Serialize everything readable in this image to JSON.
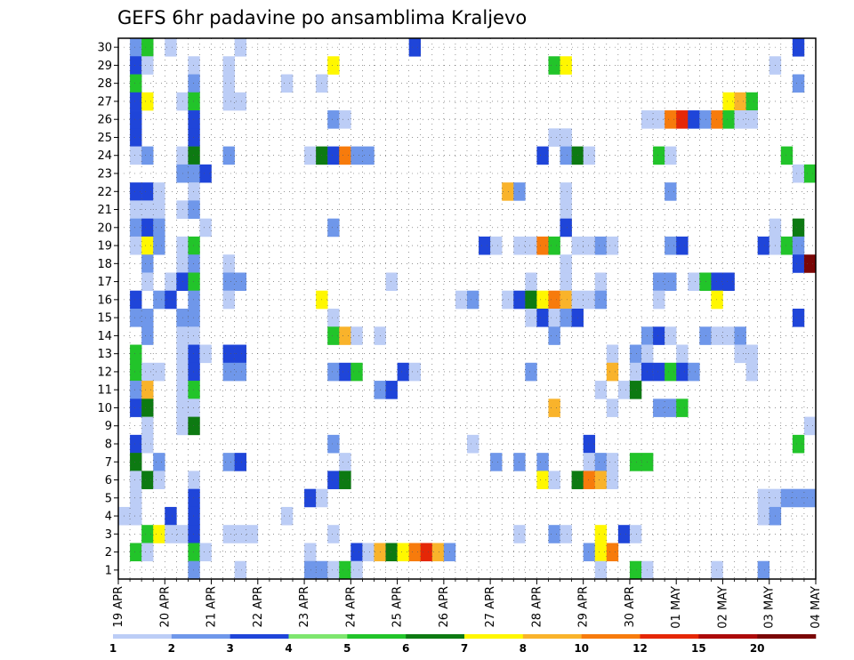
{
  "chart_data": {
    "type": "heatmap",
    "title": "GEFS 6hr padavine po ansamblima Kraljevo",
    "xlabel": "",
    "ylabel": "",
    "members": [
      30,
      29,
      28,
      27,
      26,
      25,
      24,
      23,
      22,
      21,
      20,
      19,
      18,
      17,
      16,
      15,
      14,
      13,
      12,
      11,
      10,
      9,
      8,
      7,
      6,
      5,
      4,
      3,
      2,
      1
    ],
    "x_ticks": [
      "19 APR",
      "20 APR",
      "21 APR",
      "22 APR",
      "23 APR",
      "24 APR",
      "25 APR",
      "26 APR",
      "27 APR",
      "28 APR",
      "29 APR",
      "30 APR",
      "01 MAY",
      "02 MAY",
      "03 MAY",
      "04 MAY"
    ],
    "steps_per_day": 4,
    "n_steps": 60,
    "grid": true,
    "legend": {
      "placement": "bottom",
      "levels": [
        1,
        2,
        3,
        4,
        5,
        6,
        7,
        8,
        10,
        12,
        15,
        20
      ],
      "colors": [
        "#bccdf6",
        "#6f97ea",
        "#1f45d9",
        "#7ee66e",
        "#22c42a",
        "#0d7a12",
        "#fff700",
        "#f9b32b",
        "#f77b0c",
        "#e52707",
        "#ad0a0a",
        "#7a0606"
      ]
    },
    "cells": [
      [
        30,
        1,
        2
      ],
      [
        30,
        2,
        5
      ],
      [
        30,
        4,
        1
      ],
      [
        30,
        10,
        1
      ],
      [
        30,
        25,
        3
      ],
      [
        30,
        58,
        3
      ],
      [
        29,
        1,
        3
      ],
      [
        29,
        2,
        1
      ],
      [
        29,
        6,
        1
      ],
      [
        29,
        9,
        1
      ],
      [
        29,
        18,
        7
      ],
      [
        29,
        37,
        5
      ],
      [
        29,
        38,
        7
      ],
      [
        29,
        56,
        1
      ],
      [
        28,
        1,
        5
      ],
      [
        28,
        6,
        2
      ],
      [
        28,
        9,
        1
      ],
      [
        28,
        14,
        1
      ],
      [
        28,
        17,
        1
      ],
      [
        28,
        58,
        2
      ],
      [
        27,
        1,
        3
      ],
      [
        27,
        2,
        7
      ],
      [
        27,
        5,
        1
      ],
      [
        27,
        6,
        5
      ],
      [
        27,
        9,
        1
      ],
      [
        27,
        10,
        1
      ],
      [
        27,
        52,
        7
      ],
      [
        27,
        53,
        8
      ],
      [
        27,
        54,
        5
      ],
      [
        26,
        1,
        3
      ],
      [
        26,
        6,
        3
      ],
      [
        26,
        18,
        2
      ],
      [
        26,
        19,
        1
      ],
      [
        26,
        45,
        1
      ],
      [
        26,
        46,
        1
      ],
      [
        26,
        47,
        10
      ],
      [
        26,
        48,
        12
      ],
      [
        26,
        49,
        3
      ],
      [
        26,
        50,
        2
      ],
      [
        26,
        51,
        10
      ],
      [
        26,
        52,
        5
      ],
      [
        26,
        53,
        1
      ],
      [
        26,
        54,
        1
      ],
      [
        25,
        1,
        3
      ],
      [
        25,
        6,
        3
      ],
      [
        25,
        37,
        1
      ],
      [
        25,
        38,
        1
      ],
      [
        24,
        1,
        1
      ],
      [
        24,
        2,
        2
      ],
      [
        24,
        5,
        1
      ],
      [
        24,
        6,
        6
      ],
      [
        24,
        9,
        2
      ],
      [
        24,
        16,
        1
      ],
      [
        24,
        17,
        6
      ],
      [
        24,
        18,
        3
      ],
      [
        24,
        19,
        10
      ],
      [
        24,
        20,
        2
      ],
      [
        24,
        21,
        2
      ],
      [
        24,
        36,
        3
      ],
      [
        24,
        38,
        2
      ],
      [
        24,
        39,
        6
      ],
      [
        24,
        40,
        1
      ],
      [
        24,
        46,
        5
      ],
      [
        24,
        47,
        1
      ],
      [
        24,
        57,
        5
      ],
      [
        23,
        5,
        2
      ],
      [
        23,
        6,
        2
      ],
      [
        23,
        7,
        3
      ],
      [
        23,
        58,
        1
      ],
      [
        23,
        59,
        5
      ],
      [
        22,
        1,
        3
      ],
      [
        22,
        2,
        3
      ],
      [
        22,
        3,
        1
      ],
      [
        22,
        6,
        1
      ],
      [
        22,
        33,
        8
      ],
      [
        22,
        34,
        2
      ],
      [
        22,
        38,
        1
      ],
      [
        22,
        47,
        2
      ],
      [
        21,
        1,
        1
      ],
      [
        21,
        2,
        1
      ],
      [
        21,
        3,
        1
      ],
      [
        21,
        5,
        1
      ],
      [
        21,
        6,
        2
      ],
      [
        21,
        38,
        1
      ],
      [
        20,
        1,
        2
      ],
      [
        20,
        2,
        3
      ],
      [
        20,
        3,
        2
      ],
      [
        20,
        7,
        1
      ],
      [
        20,
        18,
        2
      ],
      [
        20,
        38,
        3
      ],
      [
        20,
        56,
        1
      ],
      [
        20,
        58,
        6
      ],
      [
        19,
        1,
        1
      ],
      [
        19,
        2,
        7
      ],
      [
        19,
        3,
        2
      ],
      [
        19,
        5,
        1
      ],
      [
        19,
        6,
        5
      ],
      [
        19,
        31,
        3
      ],
      [
        19,
        32,
        1
      ],
      [
        19,
        34,
        1
      ],
      [
        19,
        35,
        1
      ],
      [
        19,
        36,
        11
      ],
      [
        19,
        37,
        5
      ],
      [
        19,
        39,
        1
      ],
      [
        19,
        40,
        1
      ],
      [
        19,
        41,
        2
      ],
      [
        19,
        42,
        1
      ],
      [
        19,
        47,
        2
      ],
      [
        19,
        48,
        3
      ],
      [
        19,
        55,
        3
      ],
      [
        19,
        56,
        1
      ],
      [
        19,
        57,
        5
      ],
      [
        19,
        58,
        2
      ],
      [
        18,
        2,
        2
      ],
      [
        18,
        5,
        1
      ],
      [
        18,
        6,
        2
      ],
      [
        18,
        9,
        1
      ],
      [
        18,
        38,
        1
      ],
      [
        18,
        58,
        3
      ],
      [
        18,
        59,
        20
      ],
      [
        17,
        2,
        1
      ],
      [
        17,
        4,
        1
      ],
      [
        17,
        5,
        3
      ],
      [
        17,
        6,
        5
      ],
      [
        17,
        9,
        2
      ],
      [
        17,
        10,
        2
      ],
      [
        17,
        23,
        1
      ],
      [
        17,
        35,
        1
      ],
      [
        17,
        38,
        1
      ],
      [
        17,
        41,
        1
      ],
      [
        17,
        46,
        2
      ],
      [
        17,
        47,
        2
      ],
      [
        17,
        49,
        1
      ],
      [
        17,
        50,
        5
      ],
      [
        17,
        51,
        3
      ],
      [
        17,
        52,
        3
      ],
      [
        16,
        1,
        3
      ],
      [
        16,
        3,
        2
      ],
      [
        16,
        4,
        3
      ],
      [
        16,
        6,
        2
      ],
      [
        16,
        9,
        1
      ],
      [
        16,
        17,
        7
      ],
      [
        16,
        29,
        1
      ],
      [
        16,
        30,
        2
      ],
      [
        16,
        33,
        1
      ],
      [
        16,
        34,
        3
      ],
      [
        16,
        35,
        6
      ],
      [
        16,
        36,
        7
      ],
      [
        16,
        37,
        10
      ],
      [
        16,
        38,
        8
      ],
      [
        16,
        39,
        1
      ],
      [
        16,
        40,
        1
      ],
      [
        16,
        41,
        2
      ],
      [
        16,
        46,
        1
      ],
      [
        16,
        51,
        7
      ],
      [
        15,
        1,
        2
      ],
      [
        15,
        2,
        2
      ],
      [
        15,
        5,
        2
      ],
      [
        15,
        6,
        2
      ],
      [
        15,
        18,
        1
      ],
      [
        15,
        35,
        1
      ],
      [
        15,
        36,
        3
      ],
      [
        15,
        37,
        1
      ],
      [
        15,
        38,
        2
      ],
      [
        15,
        39,
        3
      ],
      [
        15,
        58,
        3
      ],
      [
        14,
        2,
        2
      ],
      [
        14,
        5,
        1
      ],
      [
        14,
        6,
        1
      ],
      [
        14,
        18,
        5
      ],
      [
        14,
        19,
        8
      ],
      [
        14,
        20,
        1
      ],
      [
        14,
        22,
        1
      ],
      [
        14,
        37,
        2
      ],
      [
        14,
        45,
        2
      ],
      [
        14,
        46,
        3
      ],
      [
        14,
        47,
        1
      ],
      [
        14,
        50,
        2
      ],
      [
        14,
        51,
        1
      ],
      [
        14,
        52,
        1
      ],
      [
        14,
        53,
        2
      ],
      [
        13,
        1,
        5
      ],
      [
        13,
        5,
        1
      ],
      [
        13,
        6,
        3
      ],
      [
        13,
        7,
        1
      ],
      [
        13,
        9,
        3
      ],
      [
        13,
        10,
        3
      ],
      [
        13,
        42,
        1
      ],
      [
        13,
        44,
        2
      ],
      [
        13,
        45,
        1
      ],
      [
        13,
        48,
        1
      ],
      [
        13,
        53,
        1
      ],
      [
        13,
        54,
        1
      ],
      [
        12,
        1,
        5
      ],
      [
        12,
        2,
        1
      ],
      [
        12,
        3,
        1
      ],
      [
        12,
        5,
        1
      ],
      [
        12,
        6,
        3
      ],
      [
        12,
        9,
        2
      ],
      [
        12,
        10,
        2
      ],
      [
        12,
        18,
        2
      ],
      [
        12,
        19,
        3
      ],
      [
        12,
        20,
        5
      ],
      [
        12,
        24,
        3
      ],
      [
        12,
        25,
        1
      ],
      [
        12,
        35,
        2
      ],
      [
        12,
        42,
        8
      ],
      [
        12,
        44,
        1
      ],
      [
        12,
        45,
        3
      ],
      [
        12,
        46,
        3
      ],
      [
        12,
        47,
        5
      ],
      [
        12,
        48,
        3
      ],
      [
        12,
        49,
        2
      ],
      [
        12,
        54,
        1
      ],
      [
        11,
        1,
        2
      ],
      [
        11,
        2,
        8
      ],
      [
        11,
        5,
        1
      ],
      [
        11,
        6,
        5
      ],
      [
        11,
        22,
        2
      ],
      [
        11,
        23,
        3
      ],
      [
        11,
        41,
        1
      ],
      [
        11,
        43,
        1
      ],
      [
        11,
        44,
        6
      ],
      [
        10,
        1,
        3
      ],
      [
        10,
        2,
        6
      ],
      [
        10,
        5,
        1
      ],
      [
        10,
        6,
        1
      ],
      [
        10,
        37,
        9
      ],
      [
        10,
        42,
        1
      ],
      [
        10,
        46,
        2
      ],
      [
        10,
        47,
        2
      ],
      [
        10,
        48,
        5
      ],
      [
        9,
        2,
        1
      ],
      [
        9,
        5,
        1
      ],
      [
        9,
        6,
        6
      ],
      [
        9,
        59,
        1
      ],
      [
        8,
        1,
        3
      ],
      [
        8,
        2,
        1
      ],
      [
        8,
        18,
        2
      ],
      [
        8,
        30,
        1
      ],
      [
        8,
        40,
        3
      ],
      [
        8,
        58,
        5
      ],
      [
        7,
        1,
        6
      ],
      [
        7,
        3,
        2
      ],
      [
        7,
        9,
        2
      ],
      [
        7,
        10,
        3
      ],
      [
        7,
        19,
        1
      ],
      [
        7,
        32,
        2
      ],
      [
        7,
        34,
        2
      ],
      [
        7,
        36,
        2
      ],
      [
        7,
        40,
        1
      ],
      [
        7,
        41,
        2
      ],
      [
        7,
        42,
        1
      ],
      [
        7,
        44,
        5
      ],
      [
        7,
        45,
        5
      ],
      [
        6,
        1,
        1
      ],
      [
        6,
        2,
        6
      ],
      [
        6,
        3,
        1
      ],
      [
        6,
        6,
        1
      ],
      [
        6,
        18,
        3
      ],
      [
        6,
        19,
        6
      ],
      [
        6,
        36,
        7
      ],
      [
        6,
        37,
        1
      ],
      [
        6,
        39,
        6
      ],
      [
        6,
        40,
        10
      ],
      [
        6,
        41,
        8
      ],
      [
        6,
        42,
        1
      ],
      [
        5,
        1,
        1
      ],
      [
        5,
        6,
        3
      ],
      [
        5,
        16,
        3
      ],
      [
        5,
        17,
        1
      ],
      [
        5,
        55,
        1
      ],
      [
        5,
        56,
        1
      ],
      [
        5,
        57,
        2
      ],
      [
        5,
        58,
        2
      ],
      [
        5,
        59,
        2
      ],
      [
        4,
        0,
        1
      ],
      [
        4,
        1,
        1
      ],
      [
        4,
        4,
        3
      ],
      [
        4,
        6,
        3
      ],
      [
        4,
        14,
        1
      ],
      [
        4,
        55,
        1
      ],
      [
        4,
        56,
        2
      ],
      [
        3,
        2,
        5
      ],
      [
        3,
        3,
        7
      ],
      [
        3,
        4,
        1
      ],
      [
        3,
        5,
        1
      ],
      [
        3,
        6,
        3
      ],
      [
        3,
        9,
        1
      ],
      [
        3,
        10,
        1
      ],
      [
        3,
        11,
        1
      ],
      [
        3,
        18,
        1
      ],
      [
        3,
        34,
        1
      ],
      [
        3,
        37,
        2
      ],
      [
        3,
        38,
        1
      ],
      [
        3,
        41,
        7
      ],
      [
        3,
        43,
        3
      ],
      [
        3,
        44,
        1
      ],
      [
        2,
        1,
        5
      ],
      [
        2,
        2,
        1
      ],
      [
        2,
        6,
        5
      ],
      [
        2,
        7,
        1
      ],
      [
        2,
        16,
        1
      ],
      [
        2,
        20,
        3
      ],
      [
        2,
        21,
        1
      ],
      [
        2,
        22,
        8
      ],
      [
        2,
        23,
        6
      ],
      [
        2,
        24,
        7
      ],
      [
        2,
        25,
        10
      ],
      [
        2,
        26,
        12
      ],
      [
        2,
        27,
        9
      ],
      [
        2,
        28,
        2
      ],
      [
        2,
        40,
        2
      ],
      [
        2,
        41,
        7
      ],
      [
        2,
        42,
        10
      ],
      [
        1,
        6,
        2
      ],
      [
        1,
        10,
        1
      ],
      [
        1,
        16,
        2
      ],
      [
        1,
        17,
        2
      ],
      [
        1,
        18,
        1
      ],
      [
        1,
        19,
        5
      ],
      [
        1,
        20,
        1
      ],
      [
        1,
        41,
        1
      ],
      [
        1,
        44,
        5
      ],
      [
        1,
        45,
        1
      ],
      [
        1,
        51,
        1
      ],
      [
        1,
        55,
        2
      ]
    ]
  }
}
